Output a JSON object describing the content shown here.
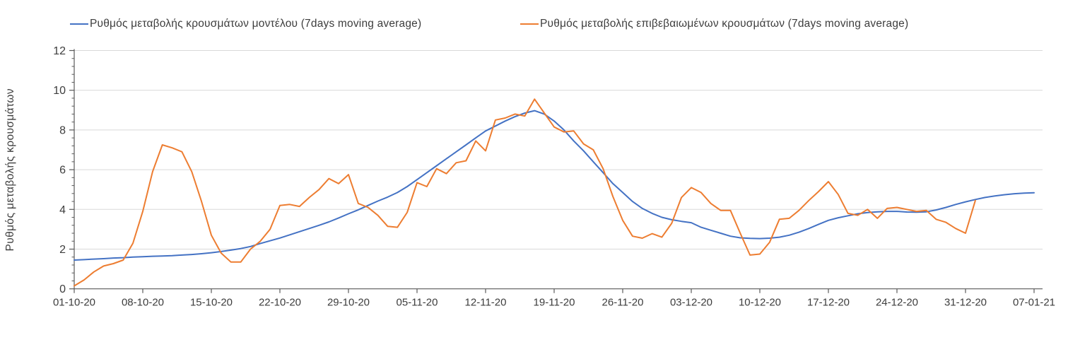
{
  "chart_data": {
    "type": "line",
    "title": "",
    "xlabel": "",
    "ylabel": "Ρυθμός μεταβολής κρουσμάτων",
    "ylim": [
      0,
      12
    ],
    "y_major_tick_step": 2,
    "y_minor_tick_step": 0.4,
    "y_major_ticks": [
      0,
      2,
      4,
      6,
      8,
      10,
      12
    ],
    "grid": "horizontal-only",
    "legend_position": "top",
    "x_unit": "days",
    "x_tick_day_interval": 7,
    "x_tick_labels": [
      "01-10-20",
      "08-10-20",
      "15-10-20",
      "22-10-20",
      "29-10-20",
      "05-11-20",
      "12-11-20",
      "19-11-20",
      "26-11-20",
      "03-12-20",
      "10-12-20",
      "17-12-20",
      "24-12-20",
      "31-12-20",
      "07-01-21"
    ],
    "x_total_days": 98,
    "colors": {
      "model_line": "#4472C4",
      "confirmed_line": "#ED7D31",
      "gridline": "#D9D9D9",
      "axis": "#595959",
      "text": "#3d3d3d"
    },
    "series": [
      {
        "id": "model",
        "name": "Ρυθμός μεταβολής κρουσμάτων μοντέλου (7days moving average)",
        "color": "#4472C4",
        "start_day": 0,
        "values": [
          1.45,
          1.47,
          1.5,
          1.52,
          1.55,
          1.57,
          1.6,
          1.62,
          1.64,
          1.65,
          1.67,
          1.7,
          1.73,
          1.77,
          1.82,
          1.88,
          1.95,
          2.03,
          2.13,
          2.28,
          2.42,
          2.56,
          2.72,
          2.88,
          3.04,
          3.2,
          3.37,
          3.57,
          3.78,
          3.98,
          4.2,
          4.42,
          4.62,
          4.85,
          5.15,
          5.5,
          5.85,
          6.2,
          6.55,
          6.9,
          7.25,
          7.6,
          7.95,
          8.2,
          8.45,
          8.67,
          8.85,
          8.97,
          8.8,
          8.45,
          8.0,
          7.45,
          6.95,
          6.4,
          5.85,
          5.3,
          4.85,
          4.4,
          4.05,
          3.8,
          3.6,
          3.48,
          3.4,
          3.33,
          3.1,
          2.95,
          2.8,
          2.65,
          2.57,
          2.54,
          2.53,
          2.55,
          2.6,
          2.7,
          2.85,
          3.04,
          3.25,
          3.45,
          3.58,
          3.68,
          3.78,
          3.84,
          3.88,
          3.9,
          3.9,
          3.87,
          3.86,
          3.88,
          3.97,
          4.1,
          4.25,
          4.38,
          4.5,
          4.6,
          4.68,
          4.74,
          4.79,
          4.82,
          4.84
        ]
      },
      {
        "id": "confirmed",
        "name": "Ρυθμός μεταβολής επιβεβαιωμένων κρουσμάτων (7days moving average)",
        "color": "#ED7D31",
        "start_day": 0,
        "values": [
          0.15,
          0.45,
          0.85,
          1.15,
          1.27,
          1.45,
          2.3,
          3.9,
          5.9,
          7.25,
          7.1,
          6.9,
          5.9,
          4.4,
          2.7,
          1.8,
          1.35,
          1.35,
          2.0,
          2.4,
          3.0,
          4.2,
          4.25,
          4.15,
          4.6,
          5.0,
          5.55,
          5.3,
          5.75,
          4.3,
          4.1,
          3.7,
          3.15,
          3.1,
          3.85,
          5.35,
          5.15,
          6.05,
          5.8,
          6.35,
          6.45,
          7.45,
          6.95,
          8.5,
          8.6,
          8.8,
          8.7,
          9.55,
          8.85,
          8.15,
          7.9,
          7.95,
          7.3,
          7.0,
          6.05,
          4.65,
          3.45,
          2.65,
          2.55,
          2.78,
          2.6,
          3.3,
          4.6,
          5.1,
          4.85,
          4.3,
          3.95,
          3.95,
          2.8,
          1.7,
          1.75,
          2.35,
          3.5,
          3.55,
          3.95,
          4.45,
          4.9,
          5.4,
          4.75,
          3.8,
          3.7,
          4.0,
          3.55,
          4.05,
          4.1,
          4.0,
          3.9,
          3.95,
          3.5,
          3.35,
          3.04,
          2.8,
          4.45
        ]
      }
    ]
  }
}
